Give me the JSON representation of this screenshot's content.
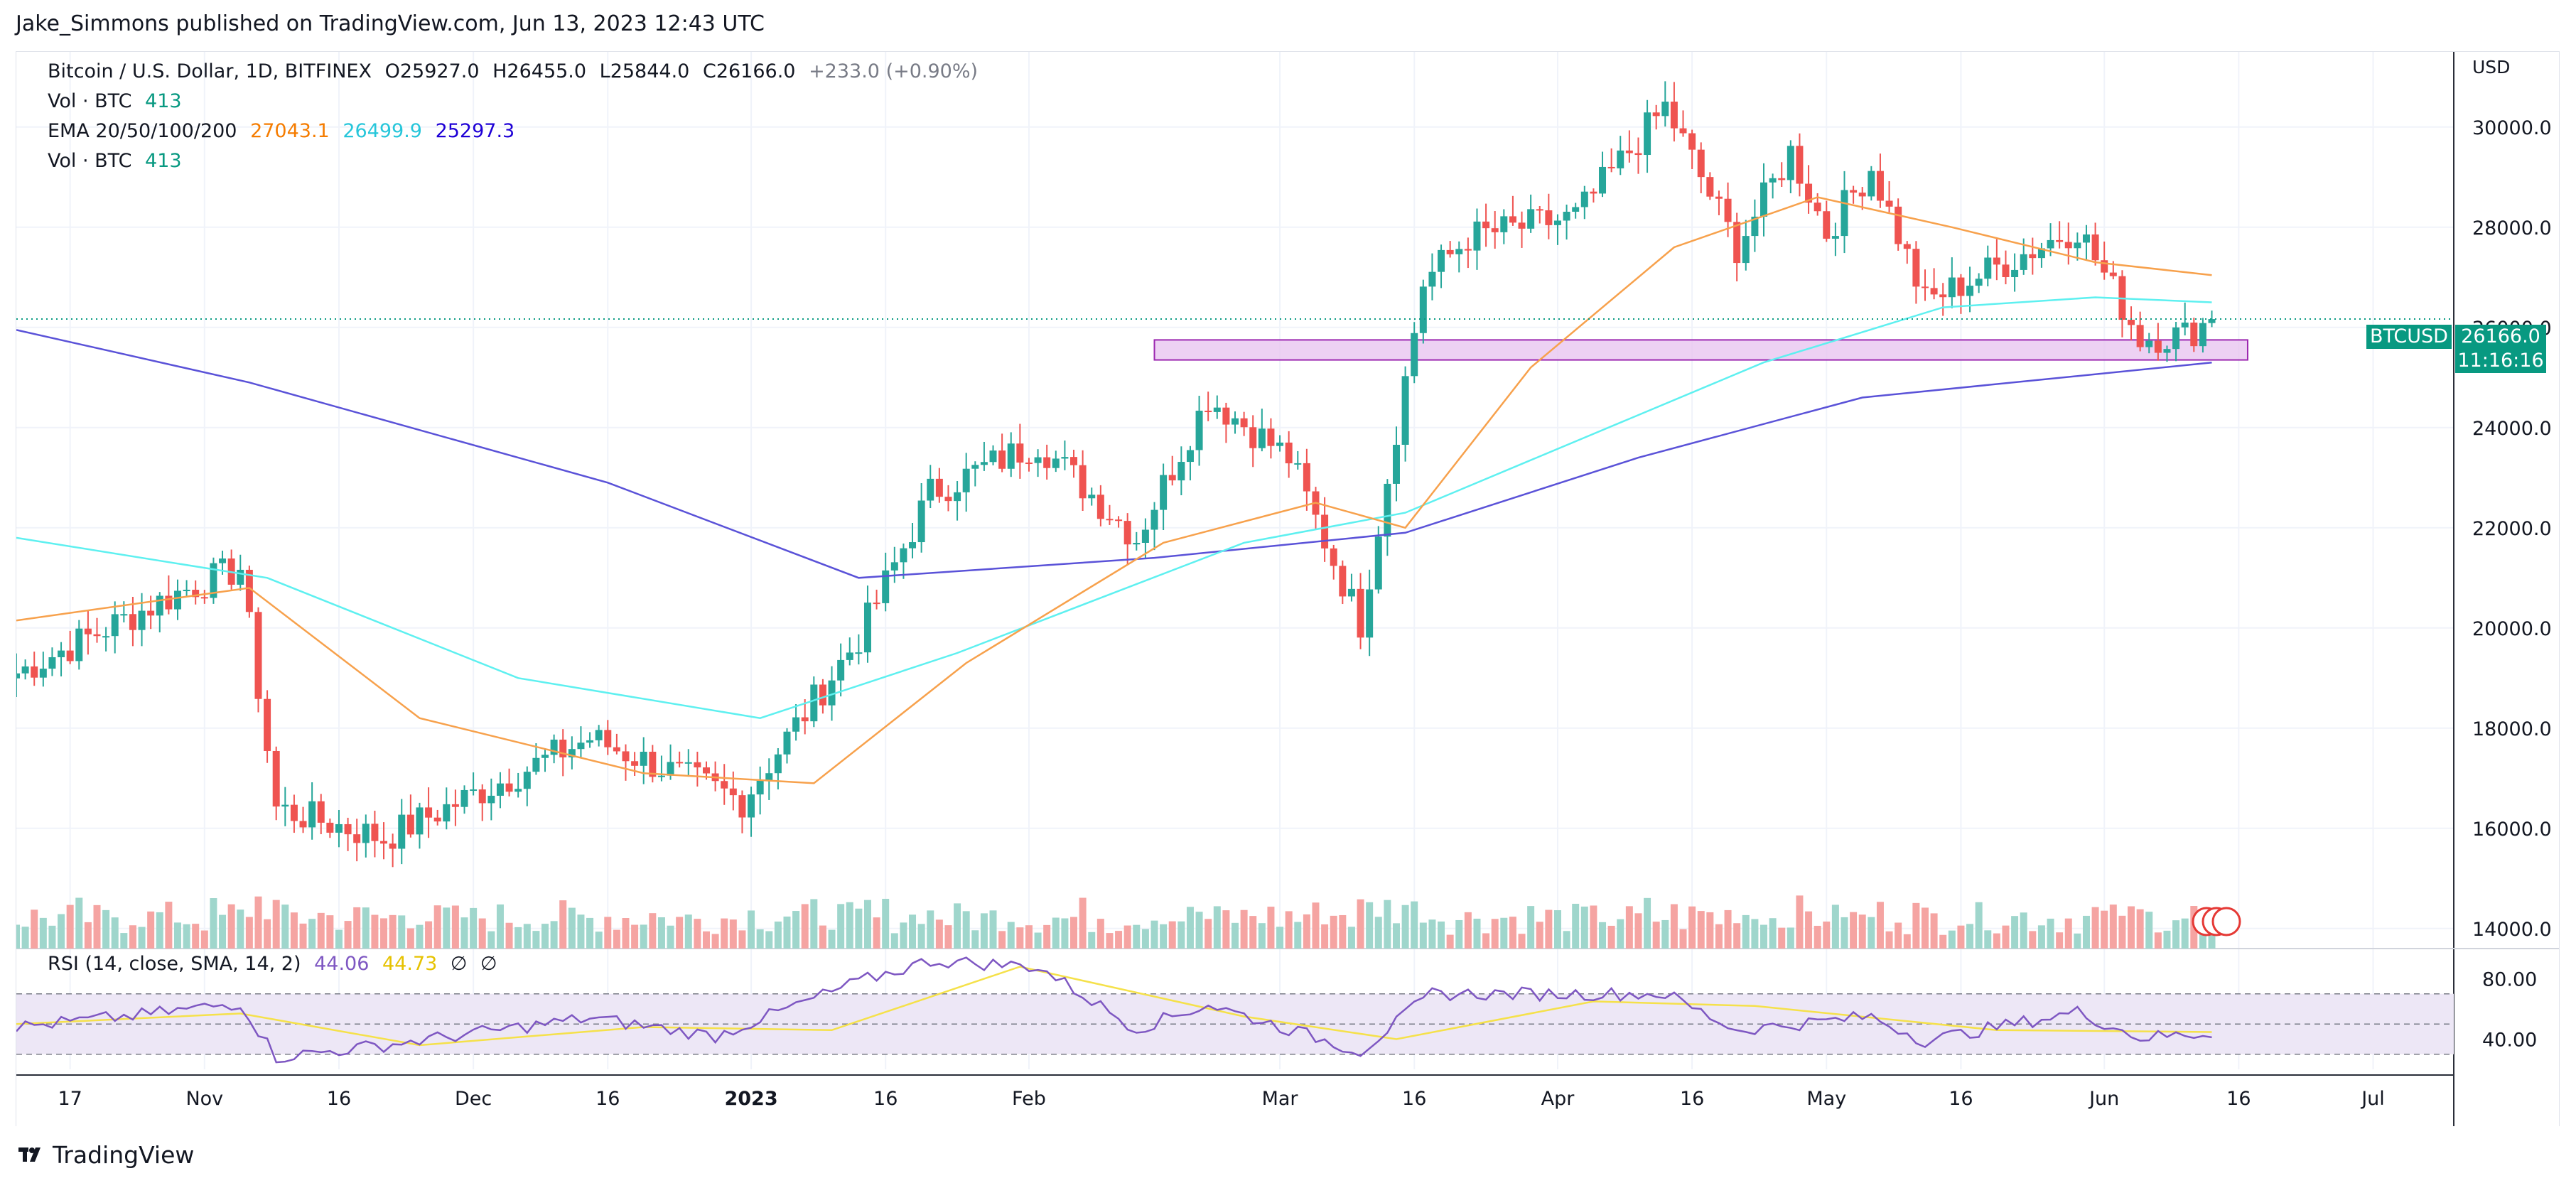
{
  "header": {
    "publisher_line": "Jake_Simmons published on TradingView.com, Jun 13, 2023 12:43 UTC"
  },
  "legend": {
    "symbol": "Bitcoin / U.S. Dollar, 1D, BITFINEX",
    "o_label": "O",
    "o_value": "25927.0",
    "h_label": "H",
    "h_value": "26455.0",
    "l_label": "L",
    "l_value": "25844.0",
    "c_label": "C",
    "c_value": "26166.0",
    "change": "+233.0 (+0.90%)",
    "vol_label": "Vol · BTC",
    "vol_value": "413",
    "ema_label": "EMA 20/50/100/200",
    "ema_v1": "27043.1",
    "ema_v2": "26499.9",
    "ema_v3": "25297.3",
    "vol2_label": "Vol · BTC",
    "vol2_value": "413",
    "rsi_label": "RSI (14, close, SMA, 14, 2)",
    "rsi_v1": "44.06",
    "rsi_v2": "44.73",
    "rsi_na1": "∅",
    "rsi_na2": "∅"
  },
  "price_scale": {
    "currency": "USD",
    "ticks": [
      "30000.0",
      "28000.0",
      "26000.0",
      "24000.0",
      "22000.0",
      "20000.0",
      "18000.0",
      "16000.0",
      "14000.0"
    ],
    "last_symbol": "BTCUSD",
    "last_price": "26166.0",
    "countdown": "11:16:16"
  },
  "rsi_scale": {
    "ticks": [
      "80.00",
      "40.00"
    ]
  },
  "time_axis": [
    "17",
    "Nov",
    "16",
    "Dec",
    "16",
    "2023",
    "16",
    "Feb",
    "Mar",
    "16",
    "Apr",
    "16",
    "May",
    "16",
    "Jun",
    "16",
    "Jul"
  ],
  "brand": {
    "name": "TradingView"
  },
  "colors": {
    "up": "#26a69a",
    "down": "#ef5350",
    "ema20": "#f7a14c",
    "ema50": "#5ef0f0",
    "ema200": "#5a52d8",
    "zone_fill": "#e8c6f0",
    "zone_stroke": "#9c27b0",
    "rsi_line": "#7e57c2",
    "rsi_sma": "#f5e14a",
    "rsi_band": "#ede7f6"
  },
  "chart_data": {
    "type": "candlestick",
    "title": "Bitcoin / U.S. Dollar, 1D, BITFINEX",
    "ylabel": "USD",
    "ylim": [
      13600,
      31500
    ],
    "x_axis": {
      "start": "2022-10-11",
      "end": "2023-07-10"
    },
    "last_close": 26166.0,
    "key_points": [
      {
        "date": "2022-10-11",
        "price": 19100
      },
      {
        "date": "2022-10-29",
        "price": 20700
      },
      {
        "date": "2022-11-05",
        "price": 21200
      },
      {
        "date": "2022-11-09",
        "price": 16400
      },
      {
        "date": "2022-11-21",
        "price": 15800
      },
      {
        "date": "2022-12-14",
        "price": 17800
      },
      {
        "date": "2022-12-31",
        "price": 16550
      },
      {
        "date": "2023-01-13",
        "price": 19800
      },
      {
        "date": "2023-01-21",
        "price": 22700
      },
      {
        "date": "2023-02-02",
        "price": 23700
      },
      {
        "date": "2023-02-13",
        "price": 21800
      },
      {
        "date": "2023-02-21",
        "price": 24600
      },
      {
        "date": "2023-03-02",
        "price": 23400
      },
      {
        "date": "2023-03-10",
        "price": 20100
      },
      {
        "date": "2023-03-17",
        "price": 26900
      },
      {
        "date": "2023-03-22",
        "price": 27800
      },
      {
        "date": "2023-04-03",
        "price": 28200
      },
      {
        "date": "2023-04-13",
        "price": 30400
      },
      {
        "date": "2023-04-21",
        "price": 27600
      },
      {
        "date": "2023-04-27",
        "price": 29500
      },
      {
        "date": "2023-05-01",
        "price": 27900
      },
      {
        "date": "2023-05-06",
        "price": 29200
      },
      {
        "date": "2023-05-12",
        "price": 26500
      },
      {
        "date": "2023-05-29",
        "price": 28000
      },
      {
        "date": "2023-06-05",
        "price": 25800
      },
      {
        "date": "2023-06-10",
        "price": 25850
      },
      {
        "date": "2023-06-13",
        "price": 26166
      }
    ],
    "ema20": [
      {
        "date": "2022-10-11",
        "value": 20150
      },
      {
        "date": "2022-11-06",
        "value": 20800
      },
      {
        "date": "2022-11-25",
        "value": 18200
      },
      {
        "date": "2022-12-20",
        "value": 17100
      },
      {
        "date": "2023-01-08",
        "value": 16900
      },
      {
        "date": "2023-01-25",
        "value": 19300
      },
      {
        "date": "2023-02-16",
        "value": 21700
      },
      {
        "date": "2023-03-05",
        "value": 22500
      },
      {
        "date": "2023-03-15",
        "value": 22000
      },
      {
        "date": "2023-03-29",
        "value": 25200
      },
      {
        "date": "2023-04-14",
        "value": 27600
      },
      {
        "date": "2023-04-30",
        "value": 28600
      },
      {
        "date": "2023-05-15",
        "value": 28000
      },
      {
        "date": "2023-05-31",
        "value": 27300
      },
      {
        "date": "2023-06-13",
        "value": 27043
      }
    ],
    "ema50": [
      {
        "date": "2022-10-11",
        "value": 21800
      },
      {
        "date": "2022-11-08",
        "value": 21000
      },
      {
        "date": "2022-12-06",
        "value": 19000
      },
      {
        "date": "2023-01-02",
        "value": 18200
      },
      {
        "date": "2023-01-24",
        "value": 19500
      },
      {
        "date": "2023-02-25",
        "value": 21700
      },
      {
        "date": "2023-03-15",
        "value": 22300
      },
      {
        "date": "2023-04-04",
        "value": 23800
      },
      {
        "date": "2023-04-24",
        "value": 25300
      },
      {
        "date": "2023-05-14",
        "value": 26400
      },
      {
        "date": "2023-05-31",
        "value": 26600
      },
      {
        "date": "2023-06-13",
        "value": 26500
      }
    ],
    "ema200": [
      {
        "date": "2022-10-11",
        "value": 25950
      },
      {
        "date": "2022-11-06",
        "value": 24900
      },
      {
        "date": "2022-12-16",
        "value": 22900
      },
      {
        "date": "2023-01-13",
        "value": 21000
      },
      {
        "date": "2023-02-15",
        "value": 21400
      },
      {
        "date": "2023-03-15",
        "value": 21900
      },
      {
        "date": "2023-04-10",
        "value": 23400
      },
      {
        "date": "2023-05-05",
        "value": 24600
      },
      {
        "date": "2023-06-13",
        "value": 25297
      }
    ],
    "support_zone": {
      "from": "2023-02-15",
      "to": "2023-06-17",
      "low": 25350,
      "high": 25750
    },
    "rsi": {
      "ylim": [
        20,
        100
      ],
      "bands": [
        30,
        70
      ],
      "last": 44.06,
      "sma_last": 44.73,
      "points": [
        {
          "date": "2022-10-11",
          "value": 48
        },
        {
          "date": "2022-10-25",
          "value": 56
        },
        {
          "date": "2022-11-05",
          "value": 64
        },
        {
          "date": "2022-11-09",
          "value": 28
        },
        {
          "date": "2022-11-21",
          "value": 36
        },
        {
          "date": "2022-12-14",
          "value": 54
        },
        {
          "date": "2022-12-28",
          "value": 42
        },
        {
          "date": "2023-01-13",
          "value": 78
        },
        {
          "date": "2023-01-21",
          "value": 92
        },
        {
          "date": "2023-02-02",
          "value": 88
        },
        {
          "date": "2023-02-13",
          "value": 47
        },
        {
          "date": "2023-02-21",
          "value": 63
        },
        {
          "date": "2023-03-10",
          "value": 32
        },
        {
          "date": "2023-03-18",
          "value": 70
        },
        {
          "date": "2023-04-13",
          "value": 70
        },
        {
          "date": "2023-04-21",
          "value": 46
        },
        {
          "date": "2023-05-06",
          "value": 55
        },
        {
          "date": "2023-05-12",
          "value": 39
        },
        {
          "date": "2023-05-29",
          "value": 58
        },
        {
          "date": "2023-06-05",
          "value": 41
        },
        {
          "date": "2023-06-13",
          "value": 44
        }
      ],
      "sma_points": [
        {
          "date": "2022-10-11",
          "value": 50
        },
        {
          "date": "2022-11-05",
          "value": 57
        },
        {
          "date": "2022-11-25",
          "value": 36
        },
        {
          "date": "2022-12-20",
          "value": 48
        },
        {
          "date": "2023-01-10",
          "value": 46
        },
        {
          "date": "2023-01-31",
          "value": 88
        },
        {
          "date": "2023-02-25",
          "value": 55
        },
        {
          "date": "2023-03-14",
          "value": 40
        },
        {
          "date": "2023-04-05",
          "value": 65
        },
        {
          "date": "2023-04-23",
          "value": 62
        },
        {
          "date": "2023-05-20",
          "value": 46
        },
        {
          "date": "2023-06-13",
          "value": 44.7
        }
      ]
    }
  }
}
